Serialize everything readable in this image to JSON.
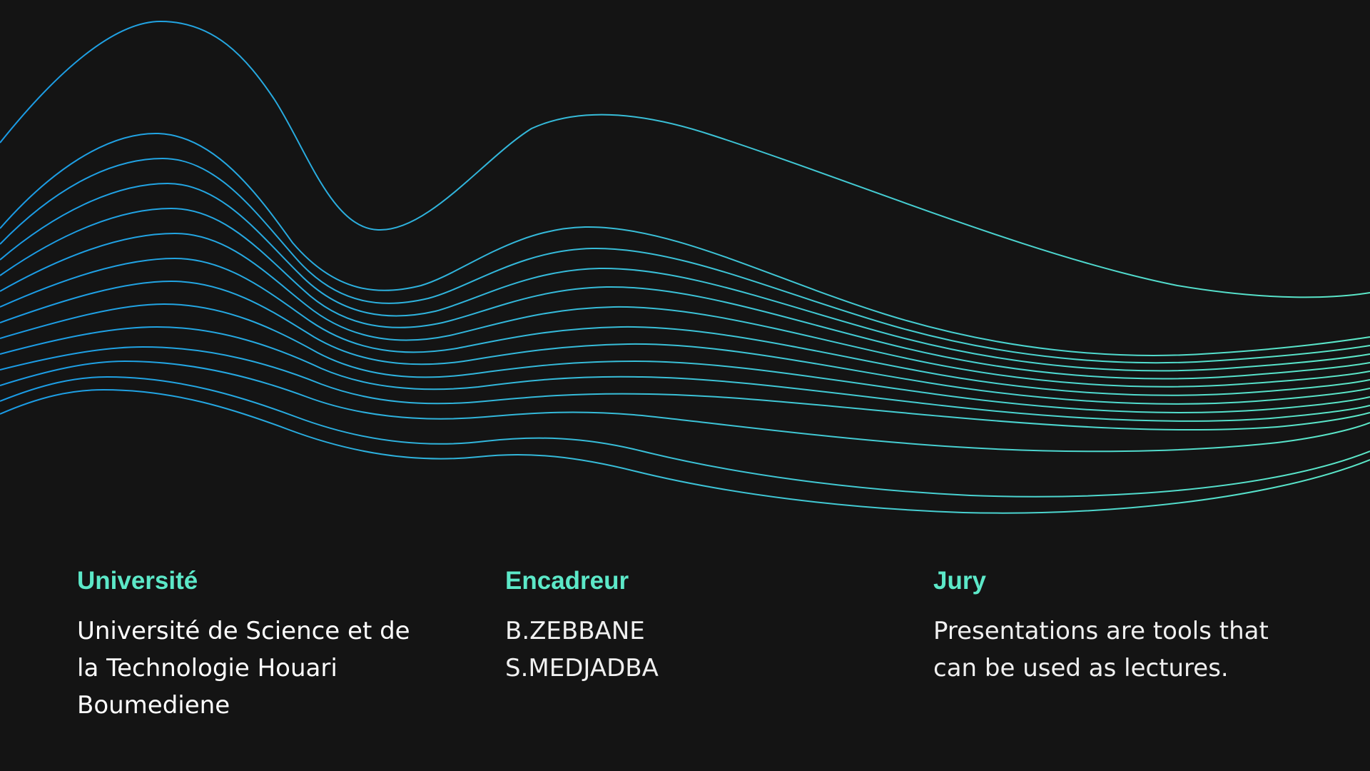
{
  "colors": {
    "background": "#141414",
    "heading": "#5ce8c8",
    "wave_start": "#1a9be6",
    "wave_end": "#5ce8c8",
    "text": "#ffffff"
  },
  "sections": [
    {
      "heading": "Université",
      "body": "Université de Science et de\nla Technologie Houari\nBoumediene"
    },
    {
      "heading": "Encadreur",
      "body": "B.ZEBBANE\nS.MEDJADBA"
    },
    {
      "heading": "Jury",
      "body": "Presentations are tools that\ncan be used as lectures."
    }
  ]
}
